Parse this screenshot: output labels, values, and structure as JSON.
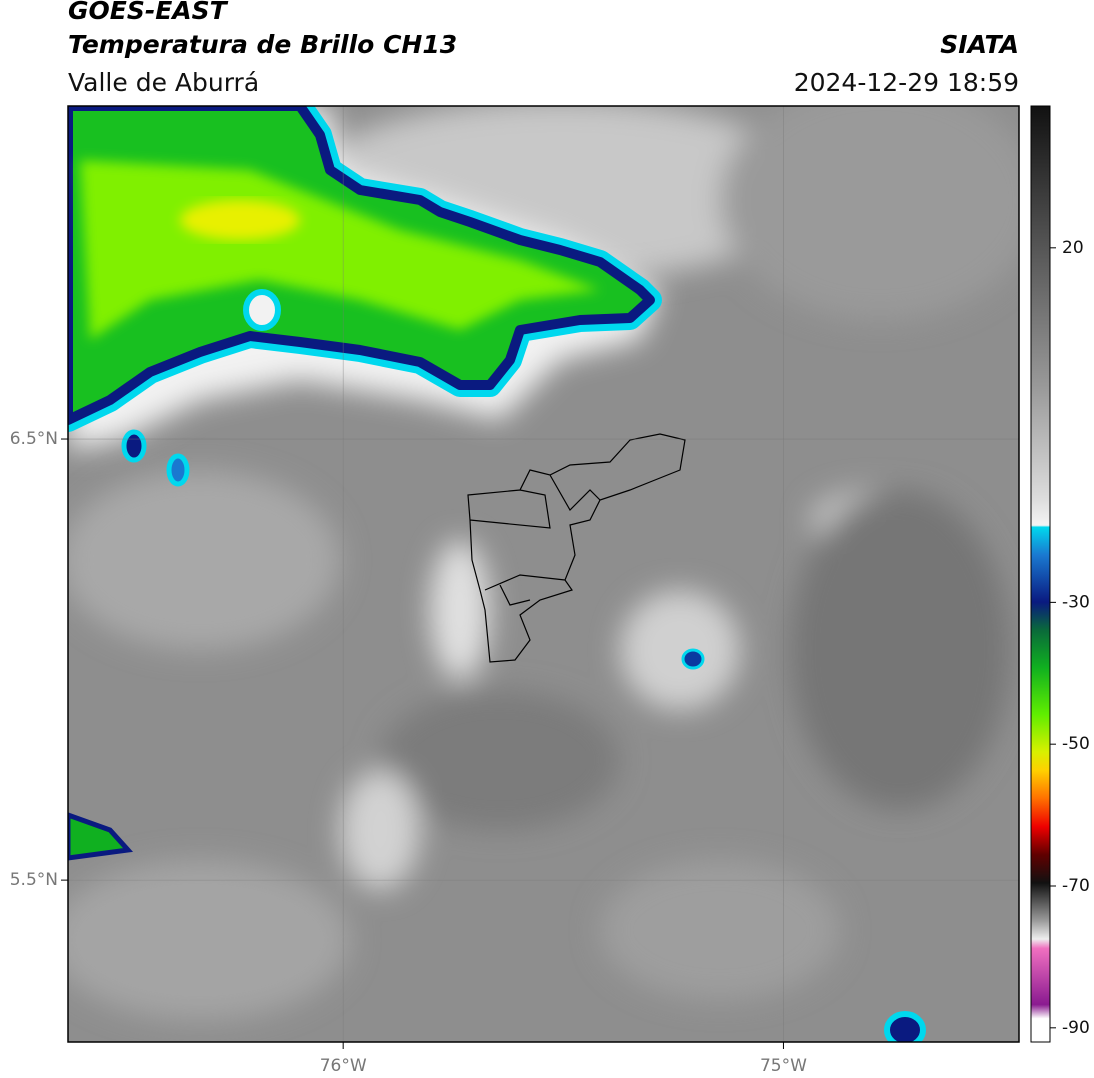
{
  "header": {
    "title": "GOES-EAST",
    "subtitle": "Temperatura de Brillo CH13",
    "region": "Valle de Aburrá",
    "source": "SIATA",
    "datetime": "2024-12-29 18:59"
  },
  "map": {
    "lon_range": [
      -76.625,
      -74.465
    ],
    "lat_range": [
      5.133,
      7.255
    ],
    "lon_ticks": [
      {
        "value": -76,
        "label": "76°W"
      },
      {
        "value": -75,
        "label": "75°W"
      }
    ],
    "lat_ticks": [
      {
        "value": 6.5,
        "label": "6.5°N"
      },
      {
        "value": 5.5,
        "label": "5.5°N"
      }
    ]
  },
  "colorbar": {
    "range": [
      -92,
      40
    ],
    "ticks": [
      20,
      -30,
      -50,
      -70,
      -90
    ]
  }
}
